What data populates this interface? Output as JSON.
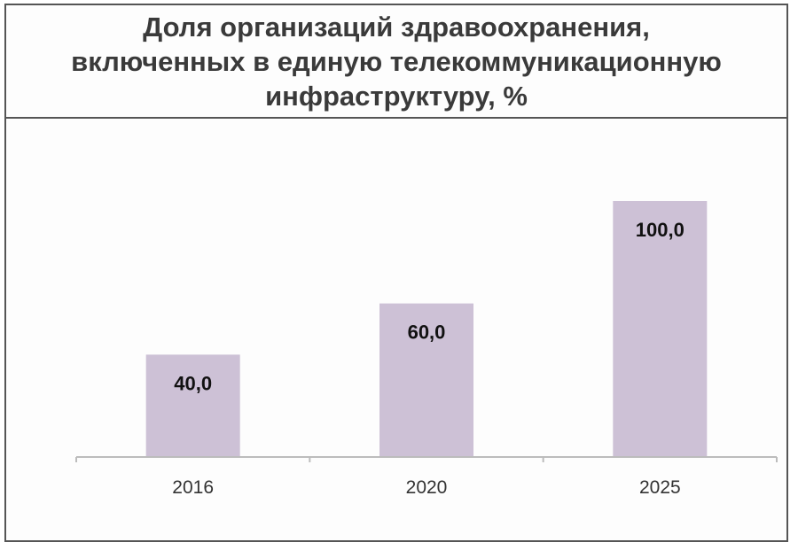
{
  "chart_data": {
    "type": "bar",
    "title": "Доля организаций здравоохранения, включенных в единую телекоммуникационную инфраструктуру, %",
    "categories": [
      "2016",
      "2020",
      "2025"
    ],
    "values": [
      40.0,
      60.0,
      100.0
    ],
    "value_labels": [
      "40,0",
      "60,0",
      "100,0"
    ],
    "ylim": [
      0,
      100
    ],
    "grid": false,
    "legend": "none",
    "bar_color": "#cdc1d6",
    "axis_color": "#bcbcbc",
    "label_color": "#111111"
  }
}
